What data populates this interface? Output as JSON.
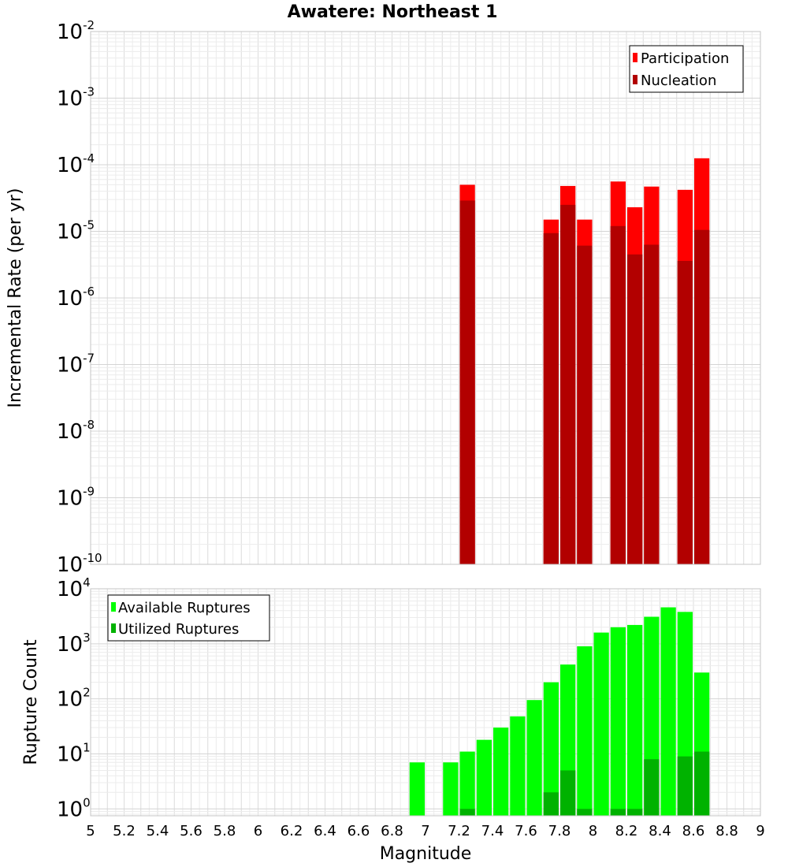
{
  "chart_data": [
    {
      "type": "bar",
      "title": "Awatere: Northeast 1",
      "xlabel": "",
      "ylabel": "Incremental Rate (per yr)",
      "yscale": "log",
      "ylim": [
        1e-10,
        0.01
      ],
      "xlim": [
        5,
        9
      ],
      "grid": true,
      "legend_position": "top-right",
      "bar_mode": "overlay",
      "bin_width": 0.1,
      "x": [
        7.25,
        7.75,
        7.85,
        7.95,
        8.15,
        8.25,
        8.35,
        8.55,
        8.65
      ],
      "series": [
        {
          "name": "Participation",
          "color": "#ff0000",
          "values": [
            5e-05,
            1.5e-05,
            4.8e-05,
            1.5e-05,
            5.6e-05,
            2.3e-05,
            4.7e-05,
            4.2e-05,
            0.000125
          ]
        },
        {
          "name": "Nucleation",
          "color": "#b20000",
          "values": [
            2.9e-05,
            9.4e-06,
            2.5e-05,
            6.1e-06,
            1.2e-05,
            4.5e-06,
            6.3e-06,
            3.6e-06,
            1.05e-05
          ]
        }
      ]
    },
    {
      "type": "bar",
      "title": "",
      "xlabel": "Magnitude",
      "ylabel": "Rupture Count",
      "yscale": "log",
      "ylim": [
        0.75,
        10000
      ],
      "xlim": [
        5,
        9
      ],
      "grid": true,
      "legend_position": "top-left",
      "bar_mode": "overlay",
      "bin_width": 0.1,
      "x_tick_labels": [
        "5",
        "5.2",
        "5.4",
        "5.6",
        "5.8",
        "6",
        "6.2",
        "6.4",
        "6.6",
        "6.8",
        "7",
        "7.2",
        "7.4",
        "7.6",
        "7.8",
        "8",
        "8.2",
        "8.4",
        "8.6",
        "8.8",
        "9"
      ],
      "x": [
        6.95,
        7.15,
        7.25,
        7.35,
        7.45,
        7.55,
        7.65,
        7.75,
        7.85,
        7.95,
        8.05,
        8.15,
        8.25,
        8.35,
        8.45,
        8.55,
        8.65
      ],
      "series": [
        {
          "name": "Available Ruptures",
          "color": "#00ff00",
          "values": [
            7,
            7,
            11,
            18,
            30,
            48,
            95,
            200,
            420,
            900,
            1600,
            2000,
            2200,
            3100,
            4600,
            3800,
            300
          ]
        },
        {
          "name": "Utilized Ruptures",
          "color": "#00b200",
          "values": [
            0,
            0,
            1,
            0,
            0,
            0,
            0,
            2,
            5,
            1,
            0,
            1,
            1,
            8,
            0,
            9,
            11
          ]
        }
      ]
    }
  ]
}
